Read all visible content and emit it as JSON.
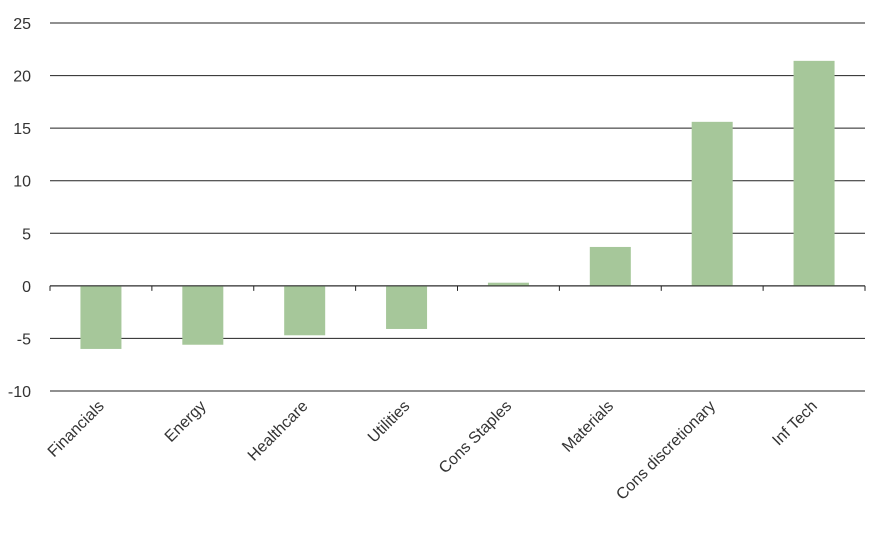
{
  "chart_data": {
    "type": "bar",
    "categories": [
      "Financials",
      "Energy",
      "Healthcare",
      "Utilities",
      "Cons Staples",
      "Materials",
      "Cons discretionary",
      "Inf Tech"
    ],
    "values": [
      -6.0,
      -5.6,
      -4.7,
      -4.1,
      0.3,
      3.7,
      15.6,
      21.4
    ],
    "ylim": [
      -10,
      25
    ],
    "yticks": [
      25,
      20,
      15,
      10,
      5,
      0,
      -5,
      -10
    ],
    "title": "",
    "xlabel": "",
    "ylabel": "",
    "grid": true,
    "colors": {
      "bar": "#a6c79a",
      "grid": "#222222",
      "text": "#333333"
    }
  }
}
